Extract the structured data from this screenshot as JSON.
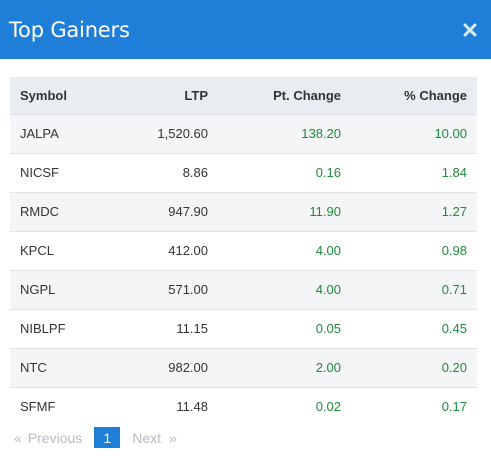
{
  "modal": {
    "title": "Top Gainers",
    "close_icon": "close-icon",
    "accent_color": "#1f7fd8"
  },
  "table": {
    "headers": [
      "Symbol",
      "LTP",
      "Pt. Change",
      "% Change"
    ],
    "rows": [
      {
        "symbol": "JALPA",
        "ltp": "1,520.60",
        "pt_change": "138.20",
        "pct_change": "10.00"
      },
      {
        "symbol": "NICSF",
        "ltp": "8.86",
        "pt_change": "0.16",
        "pct_change": "1.84"
      },
      {
        "symbol": "RMDC",
        "ltp": "947.90",
        "pt_change": "11.90",
        "pct_change": "1.27"
      },
      {
        "symbol": "KPCL",
        "ltp": "412.00",
        "pt_change": "4.00",
        "pct_change": "0.98"
      },
      {
        "symbol": "NGPL",
        "ltp": "571.00",
        "pt_change": "4.00",
        "pct_change": "0.71"
      },
      {
        "symbol": "NIBLPF",
        "ltp": "11.15",
        "pt_change": "0.05",
        "pct_change": "0.45"
      },
      {
        "symbol": "NTC",
        "ltp": "982.00",
        "pt_change": "2.00",
        "pct_change": "0.20"
      },
      {
        "symbol": "SFMF",
        "ltp": "11.48",
        "pt_change": "0.02",
        "pct_change": "0.17"
      }
    ],
    "positive_color": "#1e8a3c"
  },
  "pagination": {
    "prev_arrow": "«",
    "prev_label": "Previous",
    "current_page": "1",
    "next_label": "Next",
    "next_arrow": "»"
  }
}
